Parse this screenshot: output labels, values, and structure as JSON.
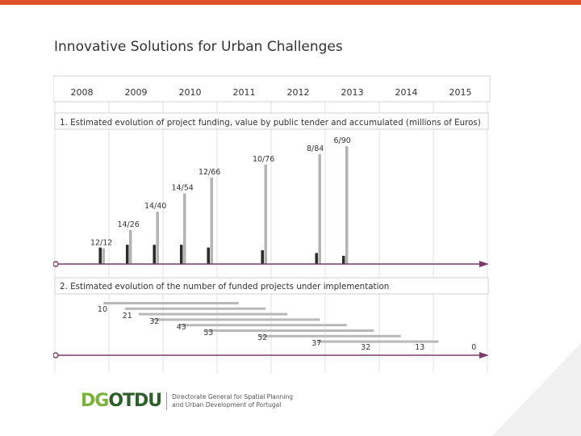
{
  "slide": {
    "title": "Innovative Solutions for Urban Challenges"
  },
  "colors": {
    "accent": "#e0502a",
    "timeline": "#7a3a6a",
    "logo_green": "#7bb23a",
    "logo_dark": "#2e5e2a"
  },
  "logo": {
    "mark_part1": "DG",
    "mark_part2": "OTDU",
    "line1": "Directorate General for Spatial Planning",
    "line2": "and Urban Development of Portugal"
  },
  "chart_data": {
    "type": "timeline",
    "years": [
      "2008",
      "2009",
      "2010",
      "2011",
      "2012",
      "2013",
      "2014",
      "2015"
    ],
    "section1": {
      "label": "1. Estimated evolution of project funding, value by public tender and accumulated (millions of Euros)",
      "events": [
        {
          "t": 2008.88,
          "tender": 12,
          "accumulated": 12,
          "label": "12/12"
        },
        {
          "t": 2009.38,
          "tender": 14,
          "accumulated": 26,
          "label": "14/26"
        },
        {
          "t": 2009.88,
          "tender": 14,
          "accumulated": 40,
          "label": "14/40"
        },
        {
          "t": 2010.38,
          "tender": 14,
          "accumulated": 54,
          "label": "14/54"
        },
        {
          "t": 2010.88,
          "tender": 12,
          "accumulated": 66,
          "label": "12/66"
        },
        {
          "t": 2011.88,
          "tender": 10,
          "accumulated": 76,
          "label": "10/76"
        },
        {
          "t": 2012.88,
          "tender": 8,
          "accumulated": 84,
          "label": "8/84"
        },
        {
          "t": 2013.38,
          "tender": 6,
          "accumulated": 90,
          "label": "6/90"
        }
      ]
    },
    "section2": {
      "label": "2. Estimated evolution of the number of funded projects under implementation",
      "start_labels": [
        {
          "t": 2008.79,
          "value": 10,
          "label": "10"
        },
        {
          "t": 2009.25,
          "value": 21,
          "label": "21"
        },
        {
          "t": 2009.75,
          "value": 32,
          "label": "32"
        },
        {
          "t": 2010.25,
          "value": 43,
          "label": "43"
        },
        {
          "t": 2010.75,
          "value": 53,
          "label": "53"
        },
        {
          "t": 2011.75,
          "value": 52,
          "label": "52"
        },
        {
          "t": 2012.75,
          "value": 37,
          "label": "37"
        }
      ],
      "end_labels": [
        {
          "t": 2013.75,
          "value": 32,
          "label": "32"
        },
        {
          "t": 2014.75,
          "value": 13,
          "label": "13"
        },
        {
          "t": 2015.75,
          "value": 0,
          "label": "0"
        }
      ],
      "periods": [
        {
          "start": 2008.9,
          "end": 2011.4
        },
        {
          "start": 2009.3,
          "end": 2011.9
        },
        {
          "start": 2009.55,
          "end": 2012.3
        },
        {
          "start": 2009.8,
          "end": 2012.9
        },
        {
          "start": 2010.3,
          "end": 2013.4
        },
        {
          "start": 2010.8,
          "end": 2013.9
        },
        {
          "start": 2011.8,
          "end": 2014.4
        },
        {
          "start": 2012.85,
          "end": 2015.1
        }
      ]
    }
  }
}
